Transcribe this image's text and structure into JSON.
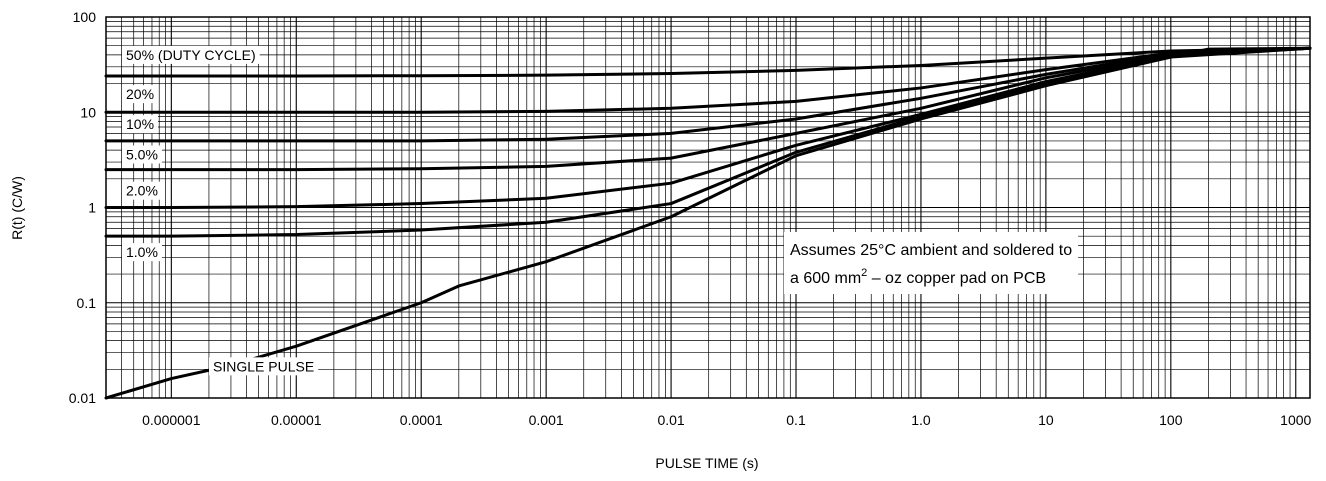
{
  "chart_data": {
    "type": "line",
    "xlabel": "PULSE TIME (s)",
    "ylabel": "R(t) (C/W)",
    "x_scale": "log",
    "y_scale": "log",
    "xlim": [
      3e-07,
      1300
    ],
    "ylim": [
      0.01,
      100
    ],
    "grid": true,
    "x_ticks": [
      {
        "value": 1e-06,
        "label": "0.000001"
      },
      {
        "value": 1e-05,
        "label": "0.00001"
      },
      {
        "value": 0.0001,
        "label": "0.0001"
      },
      {
        "value": 0.001,
        "label": "0.001"
      },
      {
        "value": 0.01,
        "label": "0.01"
      },
      {
        "value": 0.1,
        "label": "0.1"
      },
      {
        "value": 1,
        "label": "1.0"
      },
      {
        "value": 10,
        "label": "10"
      },
      {
        "value": 100,
        "label": "100"
      },
      {
        "value": 1000,
        "label": "1000"
      }
    ],
    "y_ticks": [
      {
        "value": 0.01,
        "label": "0.01"
      },
      {
        "value": 0.1,
        "label": "0.1"
      },
      {
        "value": 1,
        "label": "1"
      },
      {
        "value": 10,
        "label": "10"
      },
      {
        "value": 100,
        "label": "100"
      }
    ],
    "series": [
      {
        "name": "50% (DUTY CYCLE)",
        "label": "50% (DUTY CYCLE)",
        "x": [
          3e-07,
          1e-06,
          1e-05,
          0.0001,
          0.001,
          0.01,
          0.1,
          1,
          10,
          100,
          1300
        ],
        "y": [
          24,
          24,
          24,
          24.2,
          24.5,
          25.5,
          27.5,
          31,
          37,
          44,
          47
        ]
      },
      {
        "name": "20%",
        "label": "20%",
        "x": [
          3e-07,
          1e-06,
          1e-05,
          0.0001,
          0.001,
          0.01,
          0.1,
          1,
          10,
          100,
          1300
        ],
        "y": [
          10,
          10,
          10,
          10,
          10.2,
          11,
          13,
          18,
          28,
          42,
          47
        ]
      },
      {
        "name": "10%",
        "label": "10%",
        "x": [
          3e-07,
          1e-06,
          1e-05,
          0.0001,
          0.001,
          0.01,
          0.1,
          1,
          10,
          100,
          1300
        ],
        "y": [
          5,
          5,
          5,
          5,
          5.2,
          6,
          8.5,
          14,
          25,
          41,
          47
        ]
      },
      {
        "name": "5.0%",
        "label": "5.0%",
        "x": [
          3e-07,
          1e-06,
          1e-05,
          0.0001,
          0.001,
          0.01,
          0.1,
          1,
          10,
          100,
          1300
        ],
        "y": [
          2.5,
          2.5,
          2.5,
          2.55,
          2.7,
          3.3,
          6,
          11,
          23,
          40,
          47
        ]
      },
      {
        "name": "2.0%",
        "label": "2.0%",
        "x": [
          3e-07,
          1e-06,
          1e-05,
          0.0001,
          0.001,
          0.01,
          0.1,
          1,
          10,
          100,
          1300
        ],
        "y": [
          1,
          1,
          1.02,
          1.1,
          1.25,
          1.8,
          4.5,
          9.5,
          21,
          39,
          47
        ]
      },
      {
        "name": "1.0%",
        "label": "1.0%",
        "x": [
          3e-07,
          1e-06,
          1e-05,
          0.0001,
          0.001,
          0.01,
          0.1,
          1,
          10,
          100,
          1300
        ],
        "y": [
          0.5,
          0.5,
          0.52,
          0.58,
          0.7,
          1.1,
          3.8,
          9,
          20,
          38,
          47
        ]
      },
      {
        "name": "SINGLE PULSE",
        "label": "SINGLE PULSE",
        "x": [
          3e-07,
          1e-06,
          3e-06,
          1e-05,
          0.0001,
          0.0002,
          0.001,
          0.01,
          0.1,
          1,
          10,
          100,
          200,
          1300
        ],
        "y": [
          0.01,
          0.016,
          0.022,
          0.035,
          0.1,
          0.15,
          0.27,
          0.8,
          3.5,
          8.5,
          19,
          38,
          46,
          47
        ]
      }
    ],
    "annotation": {
      "line1": "Assumes 25°C ambient and soldered to",
      "line2_prefix": "a 600 mm",
      "line2_sup": "2",
      "line2_suffix": " – oz copper pad on PCB"
    }
  }
}
